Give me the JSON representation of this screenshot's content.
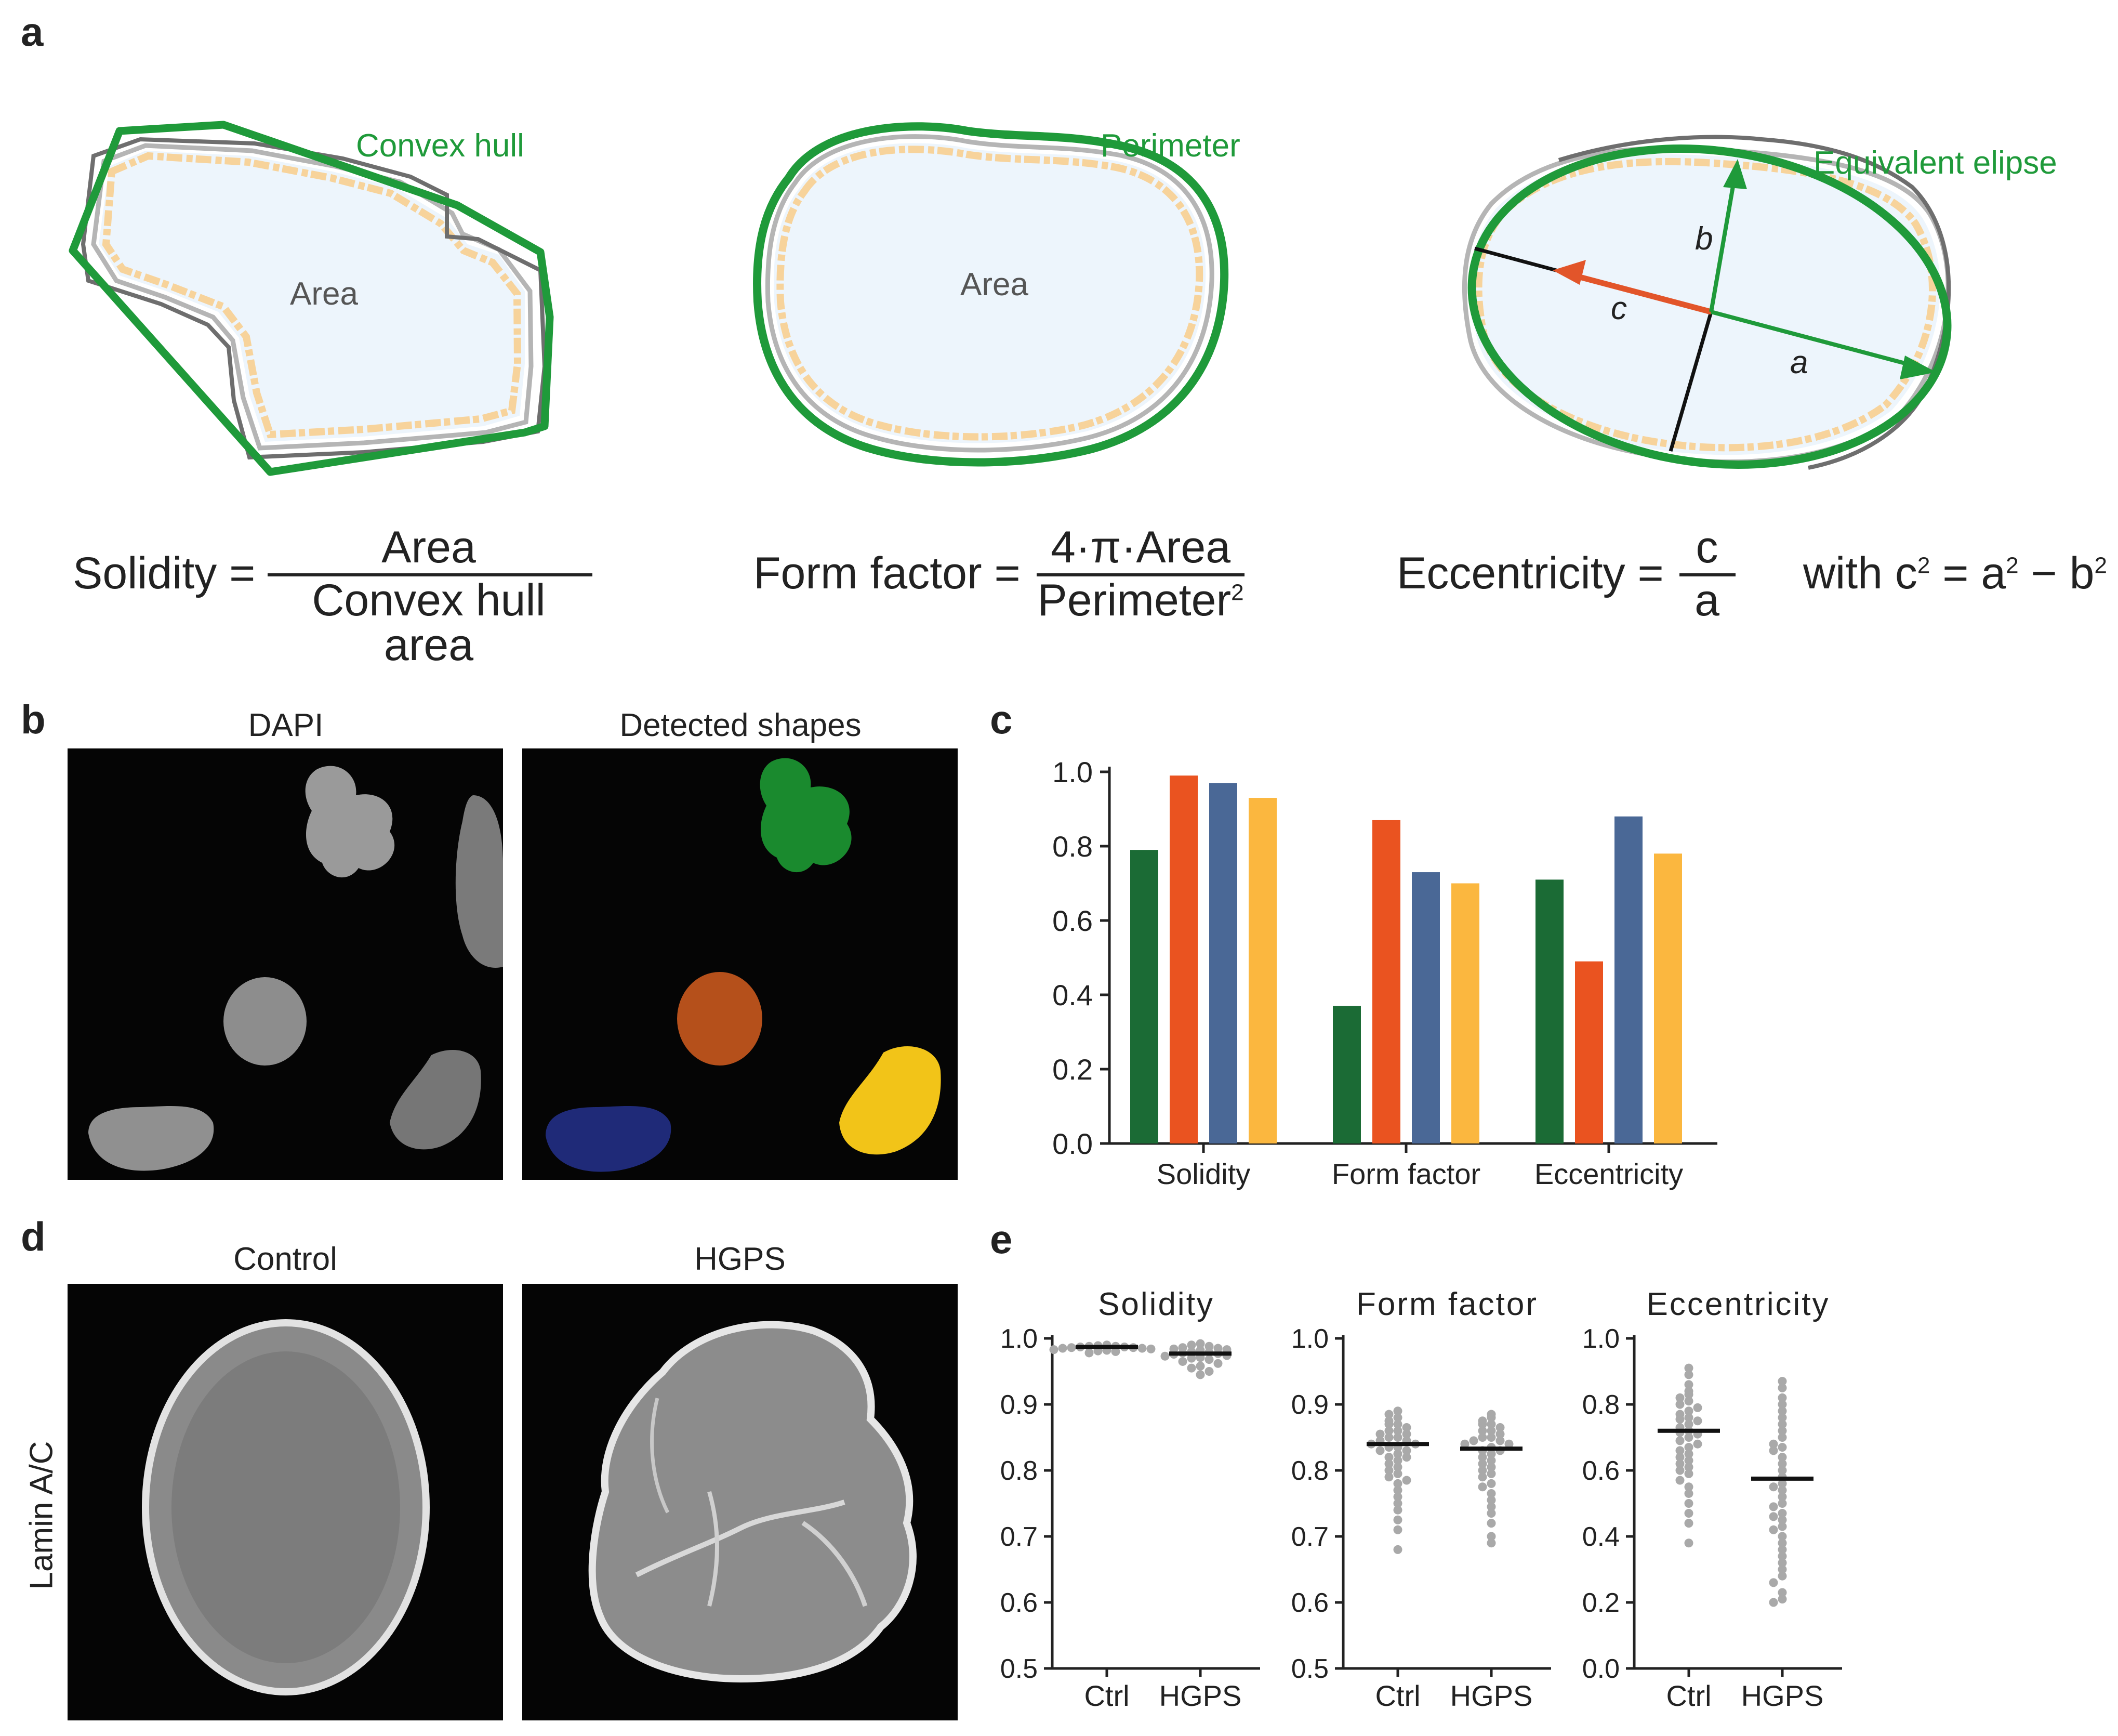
{
  "panels": {
    "a": "a",
    "b": "b",
    "c": "c",
    "d": "d",
    "e": "e"
  },
  "panel_a": {
    "diagram1": {
      "area_label": "Area",
      "outline_label": "Convex hull"
    },
    "diagram2": {
      "area_label": "Area",
      "outline_label": "Perimeter"
    },
    "diagram3": {
      "outline_label": "Equivalent elipse",
      "axis_a": "a",
      "axis_b": "b",
      "axis_c": "c"
    },
    "solidity": {
      "lhs": "Solidity =",
      "numerator": "Area",
      "denominator": "Convex hull area"
    },
    "form_factor": {
      "lhs": "Form factor =",
      "numerator": "4·π·Area",
      "denominator": "Perimeter",
      "denominator_sup": "2"
    },
    "eccentricity": {
      "lhs": "Eccentricity =",
      "numerator": "c",
      "denominator": "a",
      "rhs_text": "with c",
      "rhs_mid": " = a",
      "rhs_end": " − b",
      "sup": "2"
    }
  },
  "panel_b": {
    "left_title": "DAPI",
    "right_title": "Detected shapes",
    "shape_colors": [
      "#1a8a2e",
      "#b5501b",
      "#1f2a78",
      "#f2c418"
    ]
  },
  "panel_d": {
    "left_title": "Control",
    "right_title": "HGPS",
    "ylabel": "Lamin A/C"
  },
  "colors": {
    "green": "#1f9a3a",
    "orange": "#e2552a",
    "bar_green": "#1b6b35",
    "bar_orange": "#ea5320",
    "bar_blue": "#4a6896",
    "bar_yellow": "#fbb73f",
    "dots": "#a9a9a9"
  },
  "chart_data": [
    {
      "type": "bar",
      "panel": "c",
      "categories": [
        "Solidity",
        "Form factor",
        "Eccentricity"
      ],
      "series": [
        {
          "color": "#1b6b35",
          "values": [
            0.79,
            0.37,
            0.71
          ]
        },
        {
          "color": "#ea5320",
          "values": [
            0.99,
            0.87,
            0.49
          ]
        },
        {
          "color": "#4a6896",
          "values": [
            0.97,
            0.73,
            0.88
          ]
        },
        {
          "color": "#fbb73f",
          "values": [
            0.93,
            0.7,
            0.78
          ]
        }
      ],
      "ylim": [
        0,
        1.0
      ],
      "yticks": [
        "0.0",
        "0.2",
        "0.4",
        "0.6",
        "0.8",
        "1.0"
      ]
    },
    {
      "type": "scatter",
      "panel": "e",
      "title": "Solidity",
      "categories": [
        "Ctrl",
        "HGPS"
      ],
      "ylim": [
        0.5,
        1.0
      ],
      "yticks": [
        "0.5",
        "0.6",
        "0.7",
        "0.8",
        "0.9",
        "1.0"
      ],
      "means": [
        0.987,
        0.977
      ],
      "series": [
        {
          "values": [
            0.99,
            0.989,
            0.988,
            0.988,
            0.987,
            0.987,
            0.986,
            0.986,
            0.985,
            0.985,
            0.984,
            0.983,
            0.982,
            0.981,
            0.98,
            0.978
          ]
        },
        {
          "values": [
            0.992,
            0.99,
            0.988,
            0.986,
            0.985,
            0.984,
            0.983,
            0.982,
            0.98,
            0.979,
            0.978,
            0.977,
            0.976,
            0.974,
            0.973,
            0.971,
            0.97,
            0.968,
            0.965,
            0.962,
            0.958,
            0.955,
            0.95,
            0.945
          ]
        }
      ]
    },
    {
      "type": "scatter",
      "panel": "e",
      "title": "Form factor",
      "categories": [
        "Ctrl",
        "HGPS"
      ],
      "ylim": [
        0.5,
        1.0
      ],
      "yticks": [
        "0.5",
        "0.6",
        "0.7",
        "0.8",
        "0.9",
        "1.0"
      ],
      "means": [
        0.84,
        0.833
      ],
      "series": [
        {
          "values": [
            0.89,
            0.885,
            0.88,
            0.875,
            0.87,
            0.87,
            0.865,
            0.86,
            0.86,
            0.855,
            0.855,
            0.85,
            0.85,
            0.845,
            0.845,
            0.84,
            0.84,
            0.835,
            0.835,
            0.83,
            0.83,
            0.825,
            0.82,
            0.82,
            0.815,
            0.81,
            0.805,
            0.8,
            0.795,
            0.79,
            0.785,
            0.78,
            0.77,
            0.76,
            0.75,
            0.74,
            0.725,
            0.71,
            0.68
          ]
        },
        {
          "values": [
            0.885,
            0.88,
            0.875,
            0.87,
            0.87,
            0.865,
            0.86,
            0.86,
            0.855,
            0.85,
            0.85,
            0.845,
            0.845,
            0.84,
            0.84,
            0.835,
            0.83,
            0.83,
            0.825,
            0.82,
            0.815,
            0.81,
            0.805,
            0.8,
            0.795,
            0.79,
            0.78,
            0.775,
            0.765,
            0.755,
            0.745,
            0.735,
            0.72,
            0.7,
            0.69
          ]
        }
      ]
    },
    {
      "type": "scatter",
      "panel": "e",
      "title": "Eccentricity",
      "categories": [
        "Ctrl",
        "HGPS"
      ],
      "ylim": [
        0.0,
        1.0
      ],
      "yticks": [
        "0.0",
        "0.2",
        "0.4",
        "0.6",
        "0.8",
        "1.0"
      ],
      "means": [
        0.72,
        0.575
      ],
      "series": [
        {
          "values": [
            0.91,
            0.89,
            0.86,
            0.84,
            0.83,
            0.82,
            0.81,
            0.8,
            0.79,
            0.78,
            0.77,
            0.76,
            0.755,
            0.75,
            0.74,
            0.73,
            0.72,
            0.715,
            0.71,
            0.7,
            0.69,
            0.68,
            0.67,
            0.66,
            0.65,
            0.64,
            0.63,
            0.62,
            0.61,
            0.6,
            0.59,
            0.57,
            0.55,
            0.53,
            0.5,
            0.47,
            0.44,
            0.38
          ]
        },
        {
          "values": [
            0.87,
            0.85,
            0.82,
            0.8,
            0.78,
            0.76,
            0.74,
            0.72,
            0.7,
            0.68,
            0.67,
            0.66,
            0.64,
            0.62,
            0.6,
            0.58,
            0.56,
            0.55,
            0.54,
            0.52,
            0.5,
            0.49,
            0.47,
            0.46,
            0.45,
            0.43,
            0.42,
            0.4,
            0.38,
            0.36,
            0.34,
            0.32,
            0.3,
            0.28,
            0.26,
            0.23,
            0.21,
            0.2
          ]
        }
      ]
    }
  ]
}
